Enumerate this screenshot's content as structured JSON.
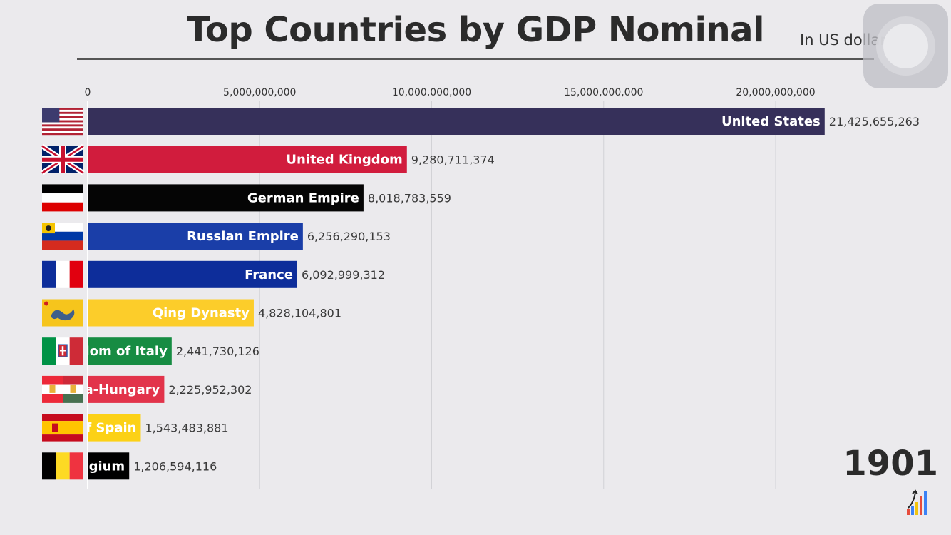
{
  "header": {
    "title": "Top Countries by GDP Nominal",
    "subtitle": "In US dollars"
  },
  "year": "1901",
  "chart_data": {
    "type": "bar",
    "orientation": "horizontal",
    "title": "Top Countries by GDP Nominal",
    "unit": "In US dollars",
    "xlim": [
      0,
      22000000000
    ],
    "ticks": [
      {
        "value": 0,
        "label": "0"
      },
      {
        "value": 5000000000,
        "label": "5,000,000,000"
      },
      {
        "value": 10000000000,
        "label": "10,000,000,000"
      },
      {
        "value": 15000000000,
        "label": "15,000,000,000"
      },
      {
        "value": 20000000000,
        "label": "20,000,000,000"
      }
    ],
    "bars": [
      {
        "name": "United States",
        "display": "United States",
        "value": 21425655263,
        "value_label": "21,425,655,263",
        "color": "#36305a",
        "flag": "flag-usa"
      },
      {
        "name": "United Kingdom",
        "display": "United Kingdom",
        "value": 9280711374,
        "value_label": "9,280,711,374",
        "color": "#d11c3d",
        "flag": "flag-uk"
      },
      {
        "name": "German Empire",
        "display": "German Empire",
        "value": 8018783559,
        "value_label": "8,018,783,559",
        "color": "#050505",
        "flag": "flag-german-empire"
      },
      {
        "name": "Russian Empire",
        "display": "Russian Empire",
        "value": 6256290153,
        "value_label": "6,256,290,153",
        "color": "#1a3ea8",
        "flag": "flag-russian-empire"
      },
      {
        "name": "France",
        "display": "France",
        "value": 6092999312,
        "value_label": "6,092,999,312",
        "color": "#0d2d9a",
        "flag": "flag-france"
      },
      {
        "name": "Qing Dynasty",
        "display": "Qing Dynasty",
        "value": 4828104801,
        "value_label": "4,828,104,801",
        "color": "#fccd2a",
        "flag": "flag-qing"
      },
      {
        "name": "Kingdom of Italy",
        "display": "gdom of Italy",
        "value": 2441730126,
        "value_label": "2,441,730,126",
        "color": "#178c43",
        "flag": "flag-italy"
      },
      {
        "name": "Austria-Hungary",
        "display": "ria-Hungary",
        "value": 2225952302,
        "value_label": "2,225,952,302",
        "color": "#e2334a",
        "flag": "flag-austria-hungary"
      },
      {
        "name": "Kingdom of Spain",
        "display": "of Spain",
        "value": 1543483881,
        "value_label": "1,543,483,881",
        "color": "#fcd116",
        "flag": "flag-spain"
      },
      {
        "name": "Belgium",
        "display": "elgium",
        "value": 1206594116,
        "value_label": "1,206,594,116",
        "color": "#000000",
        "flag": "flag-belgium"
      }
    ]
  }
}
